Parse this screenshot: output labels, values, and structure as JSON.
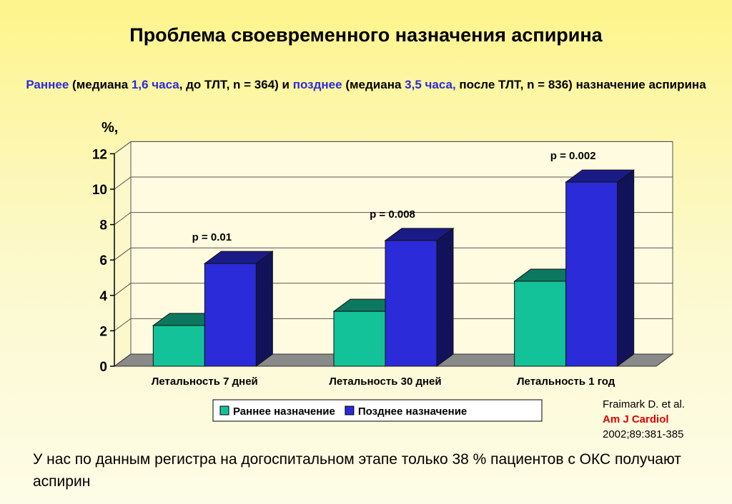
{
  "slide": {
    "title": "Проблема своевременного назначения аспирина",
    "subtitle": {
      "early_word": "Раннее",
      "part1": " (медиана ",
      "early_median": "1,6 часа",
      "part2": ", до ТЛТ, n = 364) и ",
      "late_word": "позднее",
      "part3": "  (медиана ",
      "late_median": "3,5 часа,",
      "part4": " после ТЛТ, n = 836) назначение аспирина"
    },
    "source": {
      "authors": "Fraimark D. et al.",
      "journal": "Am J Cardiol",
      "ref": "2002;89:381-385"
    },
    "footer": "У нас по данным регистра на догоспитальном этапе только 38 % пациентов с ОКС  получают аспирин"
  },
  "chart_data": {
    "type": "bar",
    "style": "3d-clustered",
    "ylabel": "%,",
    "ylim": [
      0,
      12
    ],
    "yticks": [
      0,
      2,
      4,
      6,
      8,
      10,
      12
    ],
    "grid": true,
    "legend_position": "bottom",
    "categories": [
      "Летальность 7 дней",
      "Летальность 30 дней",
      "Летальность 1 год"
    ],
    "series": [
      {
        "name": "Раннее назначение",
        "values": [
          2.3,
          3.1,
          4.8
        ],
        "color": "#14c29a"
      },
      {
        "name": "Позднее назначение",
        "values": [
          5.8,
          7.1,
          10.4
        ],
        "color": "#2b2bd9"
      }
    ],
    "annotations": [
      "p = 0.01",
      "p = 0.008",
      "p = 0.002"
    ]
  }
}
